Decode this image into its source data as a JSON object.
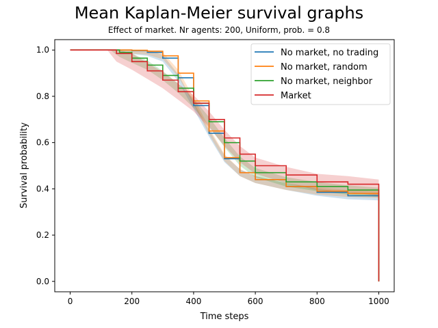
{
  "chart_data": {
    "type": "line",
    "title": "Mean Kaplan-Meier survival graphs",
    "subtitle": "Effect of market. Nr agents: 200, Uniform, prob. = 0.8",
    "xlabel": "Time steps",
    "ylabel": "Survival probability",
    "xlim": [
      -50,
      1050
    ],
    "ylim": [
      -0.045,
      1.045
    ],
    "xticks": [
      0,
      200,
      400,
      600,
      800,
      1000
    ],
    "yticks": [
      0.0,
      0.2,
      0.4,
      0.6,
      0.8,
      1.0
    ],
    "xtick_labels": [
      "0",
      "200",
      "400",
      "600",
      "800",
      "1000"
    ],
    "ytick_labels": [
      "0.0",
      "0.2",
      "0.4",
      "0.6",
      "0.8",
      "1.0"
    ],
    "grid": false,
    "legend_position": "top-right",
    "series": [
      {
        "name": "No market, no trading",
        "color": "#1f77b4",
        "x": [
          0,
          150,
          200,
          250,
          300,
          350,
          400,
          450,
          500,
          550,
          600,
          700,
          800,
          900,
          1000
        ],
        "y": [
          1.0,
          1.0,
          0.998,
          0.99,
          0.965,
          0.88,
          0.76,
          0.64,
          0.53,
          0.47,
          0.44,
          0.41,
          0.385,
          0.37,
          0.365
        ],
        "band": 0.015,
        "final_drop": 0.0
      },
      {
        "name": "No market, random",
        "color": "#ff7f0e",
        "x": [
          0,
          150,
          200,
          250,
          300,
          350,
          400,
          450,
          500,
          550,
          600,
          700,
          800,
          900,
          1000
        ],
        "y": [
          1.0,
          1.0,
          0.999,
          0.995,
          0.975,
          0.9,
          0.78,
          0.65,
          0.535,
          0.47,
          0.44,
          0.41,
          0.39,
          0.38,
          0.375
        ],
        "band": 0.015,
        "final_drop": 0.0
      },
      {
        "name": "No market, neighbor",
        "color": "#2ca02c",
        "x": [
          0,
          130,
          160,
          200,
          250,
          300,
          350,
          400,
          450,
          500,
          550,
          600,
          700,
          800,
          900,
          1000
        ],
        "y": [
          1.0,
          1.0,
          0.99,
          0.965,
          0.935,
          0.89,
          0.835,
          0.77,
          0.69,
          0.6,
          0.52,
          0.47,
          0.43,
          0.41,
          0.395,
          0.385
        ],
        "band": 0.02,
        "final_drop": 0.0
      },
      {
        "name": "Market",
        "color": "#d62728",
        "x": [
          0,
          120,
          150,
          200,
          250,
          300,
          350,
          400,
          450,
          500,
          550,
          600,
          700,
          800,
          900,
          1000
        ],
        "y": [
          1.0,
          1.0,
          0.985,
          0.95,
          0.91,
          0.87,
          0.82,
          0.77,
          0.7,
          0.62,
          0.55,
          0.5,
          0.46,
          0.43,
          0.42,
          0.405
        ],
        "band": 0.035,
        "final_drop": 0.0
      }
    ]
  }
}
